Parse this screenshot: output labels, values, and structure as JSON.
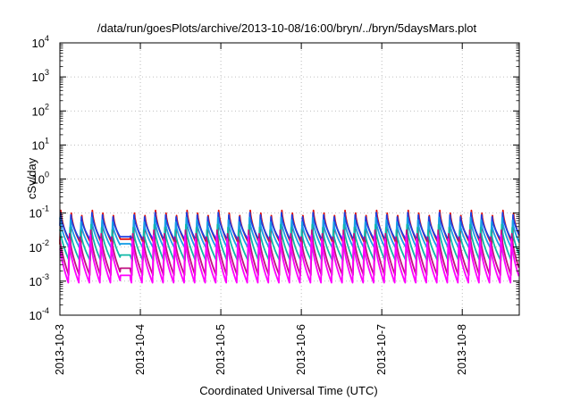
{
  "chart_data": {
    "type": "line",
    "title": "/data/run/goesPlots/archive/2013-10-08/16:00/bryn/../bryn/5daysMars.plot",
    "xlabel": "Coordinated Universal Time (UTC)",
    "ylabel": "cSv/day",
    "y_scale": "log",
    "ylim": [
      0.0001,
      10000
    ],
    "xlim": [
      "2013-10-03 00:00",
      "2013-10-08 17:00"
    ],
    "grid": true,
    "legend": "none",
    "y_ticks": [
      {
        "value": 0.0001,
        "base": "10",
        "exp": "-4"
      },
      {
        "value": 0.001,
        "base": "10",
        "exp": "-3"
      },
      {
        "value": 0.01,
        "base": "10",
        "exp": "-2"
      },
      {
        "value": 0.1,
        "base": "10",
        "exp": "-1"
      },
      {
        "value": 1,
        "base": "10",
        "exp": "0"
      },
      {
        "value": 10,
        "base": "10",
        "exp": "1"
      },
      {
        "value": 100,
        "base": "10",
        "exp": "2"
      },
      {
        "value": 1000,
        "base": "10",
        "exp": "3"
      },
      {
        "value": 10000,
        "base": "10",
        "exp": "4"
      }
    ],
    "x_ticks": [
      "2013-10-3",
      "2013-10-4",
      "2013-10-5",
      "2013-10-6",
      "2013-10-7",
      "2013-10-8"
    ],
    "x_tick_values": [
      "2013-10-03 00:00",
      "2013-10-04 00:00",
      "2013-10-05 00:00",
      "2013-10-06 00:00",
      "2013-10-07 00:00",
      "2013-10-08 00:00"
    ],
    "cycle_hours": 3.14,
    "series": [
      {
        "color": "#dd1111",
        "peak": 0.13,
        "trough": 0.012
      },
      {
        "color": "#1f3fe0",
        "peak": 0.11,
        "trough": 0.015
      },
      {
        "color": "#1a9fe6",
        "peak": 0.08,
        "trough": 0.009
      },
      {
        "color": "#10b8a8",
        "peak": 0.05,
        "trough": 0.004
      },
      {
        "color": "#c01080",
        "peak": 0.035,
        "trough": 0.0015
      },
      {
        "color": "#ff00ff",
        "peak": 0.025,
        "trough": 0.0009
      }
    ]
  }
}
